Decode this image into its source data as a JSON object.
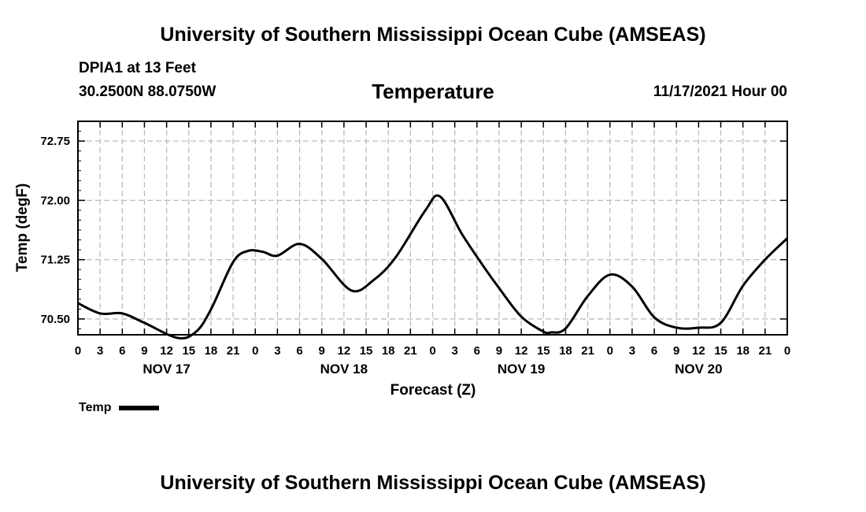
{
  "header": {
    "title": "University of Southern Mississippi Ocean Cube (AMSEAS)",
    "station": "DPIA1 at 13 Feet",
    "coordinates": "30.2500N  88.0750W",
    "variable": "Temperature",
    "run_time": "11/17/2021 Hour 00"
  },
  "footer": {
    "title": "University of Southern Mississippi Ocean Cube (AMSEAS)"
  },
  "legend": {
    "label": "Temp"
  },
  "chart_data": {
    "type": "line",
    "title": "Temperature",
    "xlabel": "Forecast (Z)",
    "ylabel": "Temp (degF)",
    "xlim": [
      0,
      96
    ],
    "ylim": [
      70.3,
      73.0
    ],
    "x_tick_step_hours": 3,
    "y_ticks": [
      70.5,
      71.25,
      72.0,
      72.75
    ],
    "y_tick_labels": [
      "70.50",
      "71.25",
      "72.00",
      "72.75"
    ],
    "x_tick_labels": [
      "0",
      "3",
      "6",
      "9",
      "12",
      "15",
      "18",
      "21",
      "0",
      "3",
      "6",
      "9",
      "12",
      "15",
      "18",
      "21",
      "0",
      "3",
      "6",
      "9",
      "12",
      "15",
      "18",
      "21",
      "0",
      "3",
      "6",
      "9",
      "12",
      "15",
      "18",
      "21",
      "0"
    ],
    "day_labels": [
      {
        "label": "NOV 17",
        "hour": 12
      },
      {
        "label": "NOV 18",
        "hour": 36
      },
      {
        "label": "NOV 19",
        "hour": 60
      },
      {
        "label": "NOV 20",
        "hour": 84
      }
    ],
    "grid": true,
    "line_color": "#000000",
    "series": [
      {
        "name": "Temp",
        "x": [
          0,
          3,
          6,
          9,
          13.5,
          16,
          18,
          21,
          23,
          25,
          27,
          30,
          33,
          37,
          40,
          43,
          47,
          49,
          52,
          55,
          57,
          60,
          63,
          64,
          66,
          69,
          72,
          75,
          78,
          81,
          84,
          87,
          90,
          93,
          96
        ],
        "y": [
          70.7,
          70.57,
          70.57,
          70.45,
          70.26,
          70.34,
          70.62,
          71.22,
          71.36,
          71.35,
          71.3,
          71.45,
          71.26,
          70.86,
          70.99,
          71.28,
          71.87,
          72.05,
          71.57,
          71.15,
          70.89,
          70.53,
          70.34,
          70.33,
          70.38,
          70.79,
          71.06,
          70.91,
          70.52,
          70.39,
          70.39,
          70.45,
          70.92,
          71.25,
          71.52
        ]
      }
    ]
  }
}
